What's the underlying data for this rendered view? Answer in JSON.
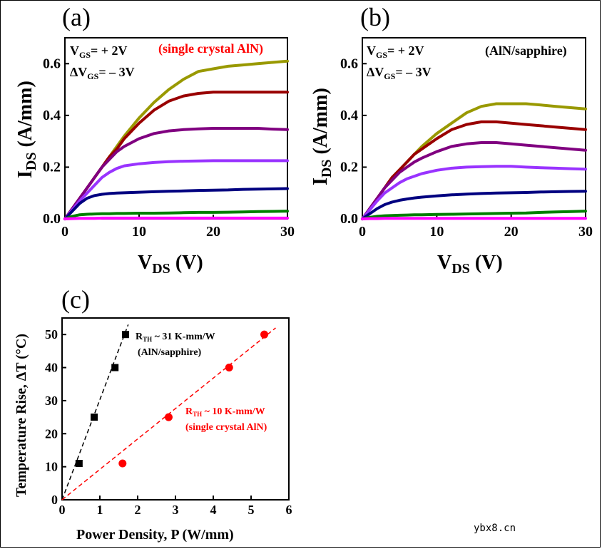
{
  "watermark": "ybx8.cn",
  "panels": {
    "a": {
      "label": "(a)",
      "vgs_text_main": "V",
      "vgs_sub": "GS",
      "vgs_value": "= + 2V",
      "dvgs_text_main": "ΔV",
      "dvgs_sub": "GS",
      "dvgs_value": "= – 3V",
      "annotation": "(single crystal AlN)",
      "annotation_color": "#ff0000",
      "ylabel_main": "I",
      "ylabel_sub": "DS",
      "ylabel_rest": " (A/mm)",
      "xlabel_main": "V",
      "xlabel_sub": "DS",
      "xlabel_rest": " (V)"
    },
    "b": {
      "label": "(b)",
      "vgs_text_main": "V",
      "vgs_sub": "GS",
      "vgs_value": "= + 2V",
      "dvgs_text_main": "ΔV",
      "dvgs_sub": "GS",
      "dvgs_value": "= – 3V",
      "annotation": "(AlN/sapphire)",
      "annotation_color": "#000000",
      "ylabel_main": "I",
      "ylabel_sub": "DS",
      "ylabel_rest": " (A/mm)",
      "xlabel_main": "V",
      "xlabel_sub": "DS",
      "xlabel_rest": " (V)"
    },
    "c": {
      "label": "(c)",
      "ylabel": "Temperature Rise, ΔT (°C)",
      "xlabel": "Power Density, P (W/mm)",
      "ann_black_main": "R",
      "ann_black_sub": "TH",
      "ann_black_rest": " ~ 31 K-mm/W",
      "ann_black_line2": "(AlN/sapphire)",
      "ann_red_main": "R",
      "ann_red_sub": "TH",
      "ann_red_rest": " ~ 10 K-mm/W",
      "ann_red_line2": "(single crystal AlN)"
    }
  },
  "chart_data": [
    {
      "type": "line",
      "panel": "a",
      "xlim": [
        0,
        30
      ],
      "ylim": [
        0,
        0.7
      ],
      "x_ticks": [
        0,
        10,
        20,
        30
      ],
      "y_ticks": [
        0.0,
        0.2,
        0.4,
        0.6
      ],
      "x_tick_labels": [
        "0",
        "10",
        "20",
        "30"
      ],
      "y_tick_labels": [
        "0.0",
        "0.2",
        "0.4",
        "0.6"
      ],
      "x": [
        0,
        1,
        2,
        3,
        4,
        5,
        6,
        7,
        8,
        10,
        12,
        14,
        16,
        18,
        20,
        22,
        24,
        26,
        28,
        30
      ],
      "series": [
        {
          "color": "#999900",
          "values": [
            0,
            0.04,
            0.08,
            0.12,
            0.16,
            0.2,
            0.24,
            0.28,
            0.32,
            0.39,
            0.45,
            0.5,
            0.54,
            0.57,
            0.58,
            0.59,
            0.595,
            0.6,
            0.605,
            0.61
          ]
        },
        {
          "color": "#990000",
          "values": [
            0,
            0.04,
            0.08,
            0.12,
            0.16,
            0.2,
            0.24,
            0.27,
            0.31,
            0.37,
            0.42,
            0.455,
            0.475,
            0.485,
            0.49,
            0.49,
            0.49,
            0.49,
            0.49,
            0.49
          ]
        },
        {
          "color": "#800080",
          "values": [
            0,
            0.04,
            0.08,
            0.12,
            0.16,
            0.2,
            0.23,
            0.26,
            0.28,
            0.31,
            0.33,
            0.34,
            0.345,
            0.348,
            0.35,
            0.35,
            0.35,
            0.35,
            0.347,
            0.345
          ]
        },
        {
          "color": "#9933ff",
          "values": [
            0,
            0.035,
            0.07,
            0.1,
            0.13,
            0.16,
            0.18,
            0.195,
            0.205,
            0.213,
            0.218,
            0.221,
            0.223,
            0.224,
            0.225,
            0.225,
            0.225,
            0.225,
            0.225,
            0.225
          ]
        },
        {
          "color": "#000080",
          "values": [
            0,
            0.03,
            0.06,
            0.08,
            0.09,
            0.095,
            0.098,
            0.1,
            0.101,
            0.103,
            0.105,
            0.107,
            0.108,
            0.11,
            0.111,
            0.112,
            0.114,
            0.115,
            0.116,
            0.117
          ]
        },
        {
          "color": "#008000",
          "values": [
            0,
            0.01,
            0.016,
            0.018,
            0.019,
            0.02,
            0.02,
            0.021,
            0.021,
            0.022,
            0.022,
            0.023,
            0.024,
            0.025,
            0.025,
            0.026,
            0.027,
            0.028,
            0.029,
            0.03
          ]
        },
        {
          "color": "#ff00ff",
          "values": [
            0,
            0.001,
            0.002,
            0.002,
            0.002,
            0.003,
            0.003,
            0.003,
            0.003,
            0.003,
            0.003,
            0.003,
            0.003,
            0.003,
            0.003,
            0.003,
            0.003,
            0.003,
            0.003,
            0.003
          ]
        }
      ]
    },
    {
      "type": "line",
      "panel": "b",
      "xlim": [
        0,
        30
      ],
      "ylim": [
        0,
        0.7
      ],
      "x_ticks": [
        0,
        10,
        20,
        30
      ],
      "y_ticks": [
        0.0,
        0.2,
        0.4,
        0.6
      ],
      "x_tick_labels": [
        "0",
        "10",
        "20",
        "30"
      ],
      "y_tick_labels": [
        "0.0",
        "0.2",
        "0.4",
        "0.6"
      ],
      "x": [
        0,
        1,
        2,
        3,
        4,
        5,
        6,
        7,
        8,
        10,
        12,
        14,
        16,
        18,
        20,
        22,
        24,
        26,
        28,
        30
      ],
      "series": [
        {
          "color": "#999900",
          "values": [
            0,
            0.04,
            0.08,
            0.12,
            0.16,
            0.19,
            0.22,
            0.25,
            0.28,
            0.33,
            0.37,
            0.41,
            0.435,
            0.445,
            0.445,
            0.445,
            0.44,
            0.435,
            0.43,
            0.425
          ]
        },
        {
          "color": "#990000",
          "values": [
            0,
            0.04,
            0.08,
            0.12,
            0.16,
            0.19,
            0.22,
            0.25,
            0.27,
            0.31,
            0.345,
            0.365,
            0.375,
            0.375,
            0.37,
            0.365,
            0.36,
            0.355,
            0.35,
            0.345
          ]
        },
        {
          "color": "#800080",
          "values": [
            0,
            0.04,
            0.08,
            0.12,
            0.15,
            0.18,
            0.2,
            0.22,
            0.235,
            0.26,
            0.28,
            0.29,
            0.295,
            0.295,
            0.29,
            0.285,
            0.28,
            0.275,
            0.27,
            0.265
          ]
        },
        {
          "color": "#9933ff",
          "values": [
            0,
            0.035,
            0.07,
            0.1,
            0.12,
            0.14,
            0.155,
            0.165,
            0.175,
            0.188,
            0.196,
            0.2,
            0.202,
            0.203,
            0.203,
            0.2,
            0.198,
            0.196,
            0.194,
            0.192
          ]
        },
        {
          "color": "#000080",
          "values": [
            0,
            0.02,
            0.04,
            0.055,
            0.065,
            0.072,
            0.077,
            0.081,
            0.084,
            0.089,
            0.093,
            0.096,
            0.098,
            0.1,
            0.101,
            0.102,
            0.104,
            0.105,
            0.106,
            0.107
          ]
        },
        {
          "color": "#008000",
          "values": [
            0,
            0.006,
            0.01,
            0.012,
            0.013,
            0.014,
            0.015,
            0.016,
            0.016,
            0.017,
            0.018,
            0.019,
            0.02,
            0.021,
            0.022,
            0.023,
            0.025,
            0.027,
            0.028,
            0.03
          ]
        },
        {
          "color": "#ff00ff",
          "values": [
            0,
            0.001,
            0.001,
            0.002,
            0.002,
            0.002,
            0.002,
            0.002,
            0.002,
            0.002,
            0.002,
            0.002,
            0.002,
            0.002,
            0.002,
            0.002,
            0.002,
            0.002,
            0.002,
            0.002
          ]
        }
      ]
    },
    {
      "type": "scatter",
      "panel": "c",
      "xlim": [
        0,
        6
      ],
      "ylim": [
        0,
        55
      ],
      "x_ticks": [
        0,
        1,
        2,
        3,
        4,
        5,
        6
      ],
      "y_ticks": [
        0,
        10,
        20,
        30,
        40,
        50
      ],
      "x_tick_labels": [
        "0",
        "1",
        "2",
        "3",
        "4",
        "5",
        "6"
      ],
      "y_tick_labels": [
        "0",
        "10",
        "20",
        "30",
        "40",
        "50"
      ],
      "series": [
        {
          "marker": "square",
          "color": "#000000",
          "x": [
            0.45,
            0.85,
            1.4,
            1.68
          ],
          "y": [
            11,
            25,
            40,
            50
          ],
          "fit": {
            "x": [
              0,
              1.75
            ],
            "y": [
              0,
              53
            ]
          }
        },
        {
          "marker": "circle",
          "color": "#ff0000",
          "x": [
            1.6,
            2.82,
            4.42,
            5.35
          ],
          "y": [
            11,
            25,
            40,
            50
          ],
          "fit": {
            "x": [
              0,
              5.65
            ],
            "y": [
              0,
              52
            ]
          }
        }
      ]
    }
  ]
}
